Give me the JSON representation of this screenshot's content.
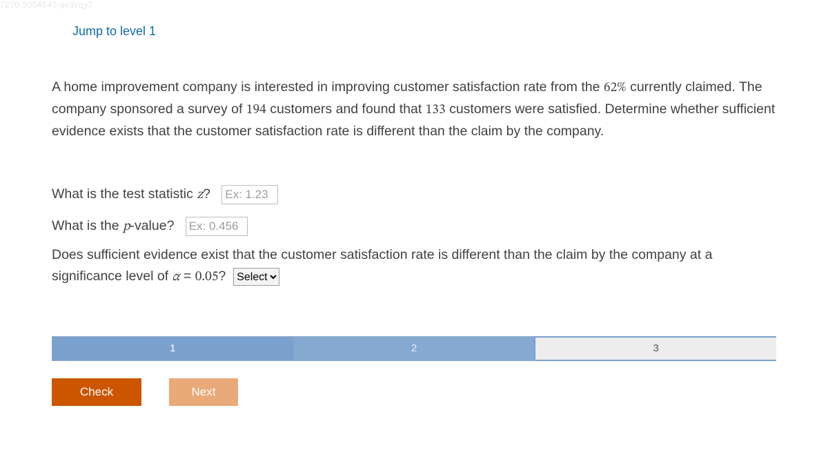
{
  "watermark": "7270.3004540.qx3zqy7",
  "jump_link": "Jump to level 1",
  "problem": {
    "t1": "A home improvement company is interested in improving customer satisfaction rate from the ",
    "pct": "62%",
    "t2": " currently claimed. The company sponsored a survey of ",
    "n": "194",
    "t3": " customers and found that ",
    "k": "133",
    "t4": " customers were satisfied. Determine whether sufficient evidence exists that the customer satisfaction rate is different than the claim by the company."
  },
  "q1": {
    "label_a": "What is the test statistic ",
    "var": "z",
    "label_b": "?",
    "placeholder": "Ex: 1.23"
  },
  "q2": {
    "label_a": "What is the ",
    "var": "p",
    "label_b": "-value?",
    "placeholder": "Ex: 0.456"
  },
  "q3": {
    "t1": "Does sufficient evidence exist that the customer satisfaction rate is different than the claim by the company at a significance level of ",
    "alpha": "α",
    "eq": " = ",
    "val": "0.05",
    "t2": "?",
    "select_default": "Select"
  },
  "levels": {
    "l1": "1",
    "l2": "2",
    "l3": "3"
  },
  "buttons": {
    "check": "Check",
    "next": "Next"
  },
  "colors": {
    "brand_orange": "#cc5500",
    "brand_orange_light": "#e9a978",
    "level_blue": "#7aa0cd",
    "link_blue": "#0d6ba5"
  }
}
